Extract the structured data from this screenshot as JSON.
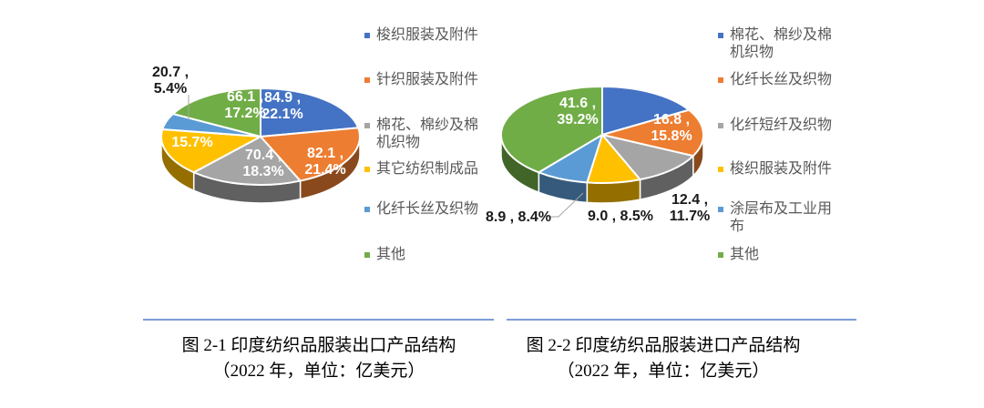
{
  "theme": {
    "rule_color": "#7D9BD8",
    "legend_text_color": "#595959",
    "inside_label_color": "#FFFFFF",
    "outside_label_color": "#1A1A1A",
    "leader_line_color": "#A6A6A6",
    "background": "#FFFFFF"
  },
  "chart_data": [
    {
      "type": "pie",
      "style": "3d",
      "title": "图 2-1 印度纺织品服装出口产品结构",
      "subtitle": "（2022 年，单位：亿美元）",
      "year": "2022",
      "unit": "亿美元",
      "legend_position": "right",
      "slices": [
        {
          "name": "梭织服装及附件",
          "value": 84.9,
          "pct": 22.1,
          "color": "#4472C4",
          "label_lines": [
            "84.9 ,",
            "22.1%"
          ],
          "label_placement": "inside"
        },
        {
          "name": "针织服装及附件",
          "value": 82.1,
          "pct": 21.4,
          "color": "#ED7D31",
          "label_lines": [
            "82.1 ,",
            "21.4%"
          ],
          "label_placement": "inside"
        },
        {
          "name": "棉花、棉纱及棉机织物",
          "value": 70.4,
          "pct": 18.3,
          "color": "#A5A5A5",
          "label_lines": [
            "70.4 ,",
            "18.3%"
          ],
          "label_placement": "inside"
        },
        {
          "name": "其它纺织制成品",
          "pct": 15.7,
          "color": "#FFC000",
          "label_lines": [
            "15.7%"
          ],
          "label_placement": "inside"
        },
        {
          "name": "化纤长丝及织物",
          "value": 20.7,
          "pct": 5.4,
          "color": "#5B9BD5",
          "label_lines": [
            "20.7 ,",
            "5.4%"
          ],
          "label_placement": "outside"
        },
        {
          "name": "其他",
          "value": 66.1,
          "pct": 17.2,
          "color": "#70AD47",
          "label_lines": [
            "66.1 ,",
            "17.2%"
          ],
          "label_placement": "inside"
        }
      ]
    },
    {
      "type": "pie",
      "style": "3d",
      "title": "图 2-2 印度纺织品服装进口产品结构",
      "subtitle": "（2022 年，单位：亿美元）",
      "year": "2022",
      "unit": "亿美元",
      "legend_position": "right",
      "slices": [
        {
          "name": "棉花、棉纱及棉机织物",
          "pct": 16.4,
          "color": "#4472C4",
          "label_lines": [],
          "label_placement": "none"
        },
        {
          "name": "化纤长丝及织物",
          "value": 16.8,
          "pct": 15.8,
          "color": "#ED7D31",
          "label_lines": [
            "16.8 ,",
            "15.8%"
          ],
          "label_placement": "inside"
        },
        {
          "name": "化纤短纤及织物",
          "value": 12.4,
          "pct": 11.7,
          "color": "#A5A5A5",
          "label_lines": [
            "12.4 ,",
            "11.7%"
          ],
          "label_placement": "outside"
        },
        {
          "name": "梭织服装及附件",
          "value": 9.0,
          "pct": 8.5,
          "color": "#FFC000",
          "label_lines": [
            "9.0 , 8.5%"
          ],
          "label_placement": "outside"
        },
        {
          "name": "涂层布及工业用布",
          "value": 8.9,
          "pct": 8.4,
          "color": "#5B9BD5",
          "label_lines": [
            "8.9 , 8.4%"
          ],
          "label_placement": "outside"
        },
        {
          "name": "其他",
          "value": 41.6,
          "pct": 39.2,
          "color": "#70AD47",
          "label_lines": [
            "41.6 ,",
            "39.2%"
          ],
          "label_placement": "inside"
        }
      ]
    }
  ]
}
